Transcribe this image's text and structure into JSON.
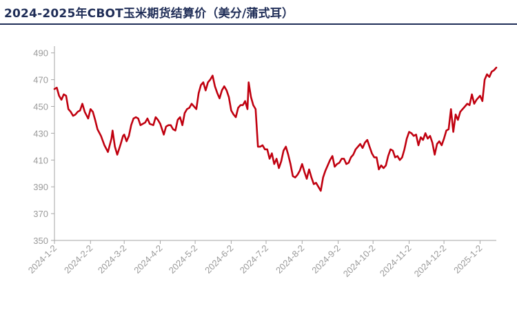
{
  "title": "2024-2025年CBOT玉米期货结算价（美分/蒲式耳）",
  "colors": {
    "line": "#c0000f",
    "axis": "#a6a6a6",
    "tick_text": "#9a9a9a",
    "title": "#1f2d57"
  },
  "chart_data": {
    "type": "line",
    "title": "2024-2025年CBOT玉米期货结算价（美分/蒲式耳）",
    "xlabel": "",
    "ylabel": "",
    "ylim": [
      350,
      495
    ],
    "yticks": [
      350,
      370,
      390,
      410,
      430,
      450,
      470,
      490
    ],
    "grid": false,
    "legend": "none",
    "xlim": [
      "2024-01-02",
      "2025-01-16"
    ],
    "xticks": [
      "2024-1-2",
      "2024-2-2",
      "2024-3-2",
      "2024-4-2",
      "2024-5-2",
      "2024-6-2",
      "2024-7-2",
      "2024-8-2",
      "2024-9-2",
      "2024-10-2",
      "2024-11-2",
      "2024-12-2",
      "2025-1-2"
    ],
    "series": [
      {
        "values": [
          [
            "2024-01-02",
            463
          ],
          [
            "2024-01-04",
            464
          ],
          [
            "2024-01-06",
            458
          ],
          [
            "2024-01-08",
            455
          ],
          [
            "2024-01-10",
            459
          ],
          [
            "2024-01-12",
            458
          ],
          [
            "2024-01-14",
            448
          ],
          [
            "2024-01-16",
            446
          ],
          [
            "2024-01-18",
            443
          ],
          [
            "2024-01-20",
            444
          ],
          [
            "2024-01-22",
            446
          ],
          [
            "2024-01-24",
            447
          ],
          [
            "2024-01-26",
            452
          ],
          [
            "2024-01-28",
            446
          ],
          [
            "2024-01-31",
            441
          ],
          [
            "2024-02-02",
            448
          ],
          [
            "2024-02-04",
            446
          ],
          [
            "2024-02-06",
            440
          ],
          [
            "2024-02-08",
            433
          ],
          [
            "2024-02-11",
            428
          ],
          [
            "2024-02-14",
            421
          ],
          [
            "2024-02-17",
            416
          ],
          [
            "2024-02-20",
            426
          ],
          [
            "2024-02-21",
            432
          ],
          [
            "2024-02-23",
            420
          ],
          [
            "2024-02-25",
            414
          ],
          [
            "2024-02-28",
            422
          ],
          [
            "2024-03-01",
            428
          ],
          [
            "2024-03-02",
            429
          ],
          [
            "2024-03-04",
            424
          ],
          [
            "2024-03-06",
            428
          ],
          [
            "2024-03-08",
            436
          ],
          [
            "2024-03-10",
            441
          ],
          [
            "2024-03-12",
            442
          ],
          [
            "2024-03-14",
            441
          ],
          [
            "2024-03-16",
            436
          ],
          [
            "2024-03-18",
            437
          ],
          [
            "2024-03-20",
            438
          ],
          [
            "2024-03-22",
            441
          ],
          [
            "2024-03-24",
            437
          ],
          [
            "2024-03-27",
            436
          ],
          [
            "2024-03-29",
            442
          ],
          [
            "2024-03-31",
            440
          ],
          [
            "2024-04-02",
            437
          ],
          [
            "2024-04-05",
            429
          ],
          [
            "2024-04-07",
            435
          ],
          [
            "2024-04-09",
            436
          ],
          [
            "2024-04-11",
            436
          ],
          [
            "2024-04-13",
            433
          ],
          [
            "2024-04-15",
            432
          ],
          [
            "2024-04-17",
            440
          ],
          [
            "2024-04-19",
            442
          ],
          [
            "2024-04-21",
            436
          ],
          [
            "2024-04-23",
            445
          ],
          [
            "2024-04-25",
            448
          ],
          [
            "2024-04-27",
            449
          ],
          [
            "2024-04-29",
            452
          ],
          [
            "2024-05-01",
            450
          ],
          [
            "2024-05-03",
            448
          ],
          [
            "2024-05-05",
            460
          ],
          [
            "2024-05-07",
            466
          ],
          [
            "2024-05-09",
            468
          ],
          [
            "2024-05-11",
            462
          ],
          [
            "2024-05-13",
            468
          ],
          [
            "2024-05-15",
            470
          ],
          [
            "2024-05-17",
            473
          ],
          [
            "2024-05-19",
            465
          ],
          [
            "2024-05-21",
            460
          ],
          [
            "2024-05-23",
            456
          ],
          [
            "2024-05-25",
            462
          ],
          [
            "2024-05-27",
            465
          ],
          [
            "2024-05-29",
            462
          ],
          [
            "2024-05-31",
            457
          ],
          [
            "2024-06-02",
            447
          ],
          [
            "2024-06-04",
            444
          ],
          [
            "2024-06-06",
            442
          ],
          [
            "2024-06-08",
            449
          ],
          [
            "2024-06-10",
            451
          ],
          [
            "2024-06-12",
            451
          ],
          [
            "2024-06-14",
            454
          ],
          [
            "2024-06-16",
            448
          ],
          [
            "2024-06-17",
            468
          ],
          [
            "2024-06-19",
            457
          ],
          [
            "2024-06-21",
            451
          ],
          [
            "2024-06-23",
            448
          ],
          [
            "2024-06-25",
            420
          ],
          [
            "2024-06-27",
            420
          ],
          [
            "2024-06-29",
            421
          ],
          [
            "2024-07-01",
            418
          ],
          [
            "2024-07-03",
            418
          ],
          [
            "2024-07-05",
            411
          ],
          [
            "2024-07-07",
            415
          ],
          [
            "2024-07-09",
            407
          ],
          [
            "2024-07-11",
            411
          ],
          [
            "2024-07-13",
            404
          ],
          [
            "2024-07-15",
            409
          ],
          [
            "2024-07-17",
            417
          ],
          [
            "2024-07-19",
            420
          ],
          [
            "2024-07-21",
            414
          ],
          [
            "2024-07-23",
            407
          ],
          [
            "2024-07-25",
            398
          ],
          [
            "2024-07-27",
            397
          ],
          [
            "2024-07-29",
            399
          ],
          [
            "2024-07-31",
            402
          ],
          [
            "2024-08-02",
            407
          ],
          [
            "2024-08-04",
            401
          ],
          [
            "2024-08-06",
            396
          ],
          [
            "2024-08-08",
            403
          ],
          [
            "2024-08-10",
            397
          ],
          [
            "2024-08-12",
            392
          ],
          [
            "2024-08-14",
            393
          ],
          [
            "2024-08-16",
            390
          ],
          [
            "2024-08-18",
            387
          ],
          [
            "2024-08-20",
            397
          ],
          [
            "2024-08-22",
            402
          ],
          [
            "2024-08-24",
            406
          ],
          [
            "2024-08-26",
            410
          ],
          [
            "2024-08-28",
            413
          ],
          [
            "2024-08-30",
            405
          ],
          [
            "2024-09-01",
            407
          ],
          [
            "2024-09-03",
            408
          ],
          [
            "2024-09-05",
            411
          ],
          [
            "2024-09-07",
            411
          ],
          [
            "2024-09-09",
            407
          ],
          [
            "2024-09-11",
            408
          ],
          [
            "2024-09-13",
            412
          ],
          [
            "2024-09-15",
            414
          ],
          [
            "2024-09-17",
            418
          ],
          [
            "2024-09-19",
            420
          ],
          [
            "2024-09-21",
            422
          ],
          [
            "2024-09-23",
            419
          ],
          [
            "2024-09-25",
            423
          ],
          [
            "2024-09-27",
            425
          ],
          [
            "2024-09-29",
            420
          ],
          [
            "2024-10-01",
            415
          ],
          [
            "2024-10-03",
            412
          ],
          [
            "2024-10-05",
            412
          ],
          [
            "2024-10-07",
            403
          ],
          [
            "2024-10-09",
            406
          ],
          [
            "2024-10-11",
            404
          ],
          [
            "2024-10-13",
            406
          ],
          [
            "2024-10-15",
            413
          ],
          [
            "2024-10-17",
            418
          ],
          [
            "2024-10-19",
            417
          ],
          [
            "2024-10-21",
            412
          ],
          [
            "2024-10-23",
            413
          ],
          [
            "2024-10-25",
            410
          ],
          [
            "2024-10-27",
            412
          ],
          [
            "2024-10-29",
            418
          ],
          [
            "2024-10-31",
            426
          ],
          [
            "2024-11-02",
            431
          ],
          [
            "2024-11-04",
            430
          ],
          [
            "2024-11-06",
            428
          ],
          [
            "2024-11-08",
            429
          ],
          [
            "2024-11-10",
            421
          ],
          [
            "2024-11-12",
            427
          ],
          [
            "2024-11-14",
            425
          ],
          [
            "2024-11-16",
            430
          ],
          [
            "2024-11-18",
            426
          ],
          [
            "2024-11-20",
            428
          ],
          [
            "2024-11-22",
            423
          ],
          [
            "2024-11-24",
            414
          ],
          [
            "2024-11-26",
            422
          ],
          [
            "2024-11-28",
            424
          ],
          [
            "2024-11-30",
            421
          ],
          [
            "2024-12-02",
            426
          ],
          [
            "2024-12-04",
            432
          ],
          [
            "2024-12-06",
            433
          ],
          [
            "2024-12-08",
            448
          ],
          [
            "2024-12-10",
            431
          ],
          [
            "2024-12-12",
            444
          ],
          [
            "2024-12-14",
            440
          ],
          [
            "2024-12-16",
            446
          ],
          [
            "2024-12-18",
            448
          ],
          [
            "2024-12-20",
            450
          ],
          [
            "2024-12-22",
            452
          ],
          [
            "2024-12-24",
            451
          ],
          [
            "2024-12-26",
            459
          ],
          [
            "2024-12-28",
            452
          ],
          [
            "2024-12-30",
            455
          ],
          [
            "2025-01-02",
            458
          ],
          [
            "2025-01-04",
            454
          ],
          [
            "2025-01-06",
            470
          ],
          [
            "2025-01-08",
            474
          ],
          [
            "2025-01-10",
            472
          ],
          [
            "2025-01-12",
            476
          ],
          [
            "2025-01-14",
            477
          ],
          [
            "2025-01-16",
            479
          ]
        ]
      }
    ]
  }
}
